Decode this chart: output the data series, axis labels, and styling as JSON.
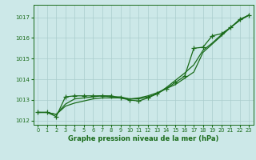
{
  "title": "Graphe pression niveau de la mer (hPa)",
  "background_color": "#cce8e8",
  "grid_color": "#aacccc",
  "line_color": "#1a6b1a",
  "xlim": [
    -0.5,
    23.5
  ],
  "ylim": [
    1011.8,
    1017.6
  ],
  "yticks": [
    1012,
    1013,
    1014,
    1015,
    1016,
    1017
  ],
  "xticks": [
    0,
    1,
    2,
    3,
    4,
    5,
    6,
    7,
    8,
    9,
    10,
    11,
    12,
    13,
    14,
    15,
    16,
    17,
    18,
    19,
    20,
    21,
    22,
    23
  ],
  "series1": [
    1012.4,
    1012.4,
    1012.3,
    1012.7,
    1012.85,
    1012.95,
    1013.05,
    1013.1,
    1013.1,
    1013.1,
    1013.05,
    1013.1,
    1013.2,
    1013.35,
    1013.55,
    1013.75,
    1014.05,
    1014.35,
    1015.3,
    1015.7,
    1016.1,
    1016.5,
    1016.85,
    1017.1
  ],
  "series2": [
    1012.4,
    1012.4,
    1012.3,
    1012.8,
    1013.05,
    1013.1,
    1013.15,
    1013.2,
    1013.15,
    1013.15,
    1013.05,
    1013.05,
    1013.15,
    1013.3,
    1013.6,
    1013.95,
    1014.3,
    1014.7,
    1015.4,
    1015.75,
    1016.15,
    1016.5,
    1016.85,
    1017.1
  ],
  "series3": [
    1012.4,
    1012.4,
    1012.2,
    1013.15,
    1013.2,
    1013.2,
    1013.2,
    1013.2,
    1013.2,
    1013.1,
    1013.0,
    1012.95,
    1013.1,
    1013.3,
    1013.55,
    1013.85,
    1014.15,
    1015.5,
    1015.55,
    1016.1,
    1016.2,
    1016.5,
    1016.9,
    1017.1
  ]
}
